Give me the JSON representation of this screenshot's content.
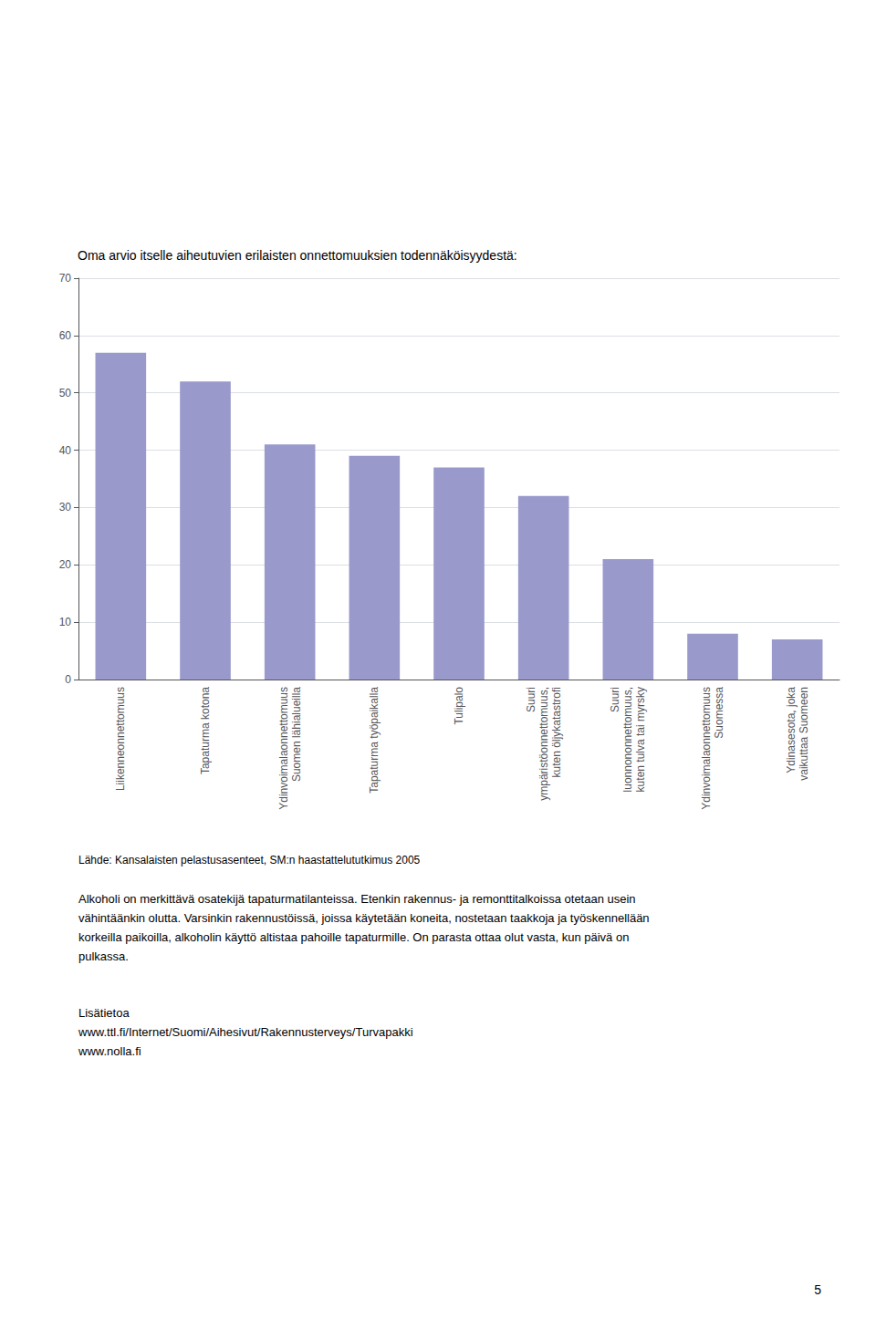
{
  "chart_data": {
    "type": "bar",
    "title": "Oma arvio itselle aiheutuvien erilaisten onnettomuuksien todennäköisyydestä:",
    "categories": [
      "Liikenneonnettomuus",
      "Tapaturma kotona",
      "Ydinvoimalaonnettomuus\nSuomen lähialueilla",
      "Tapaturma työpaikalla",
      "Tulipalo",
      "Suuri\nympäristöonnettomuus,\nkuten öljykatastrofi",
      "Suuri\nluonnononnettomuus,\nkuten tulva tai myrsky",
      "Ydinvoimalaonnettomuus\nSuomessa",
      "Ydinasesota, joka\nvaikuttaa Suomeen"
    ],
    "values": [
      57,
      52,
      41,
      39,
      37,
      32,
      21,
      8,
      7
    ],
    "color": "#9999cc",
    "ylim": [
      0,
      70
    ],
    "yticks": [
      0,
      10,
      20,
      30,
      40,
      50,
      60,
      70
    ],
    "grid": true,
    "annotations": [
      "Lähde: Kansalaisten pelastusasenteet, SM:n haastattelututkimus 2005",
      "Alkoholi on merkittävä osatekijä tapaturmatilanteissa. Etenkin rakennus- ja remonttitalkoissa otetaan usein\nvähintäänkin olutta. Varsinkin rakennustöissä, joissa käytetään koneita, nostetaan taakkoja ja työskennellään\nkorkeilla paikoilla, alkoholin käyttö altistaa pahoille tapaturmille. On parasta ottaa olut vasta, kun päivä on\npulkassa.",
      "Lisätietoa\nwww.ttl.fi/Internet/Suomi/Aihesivut/Rakennusterveys/Turvapakki\nwww.nolla.fi",
      "5"
    ]
  }
}
